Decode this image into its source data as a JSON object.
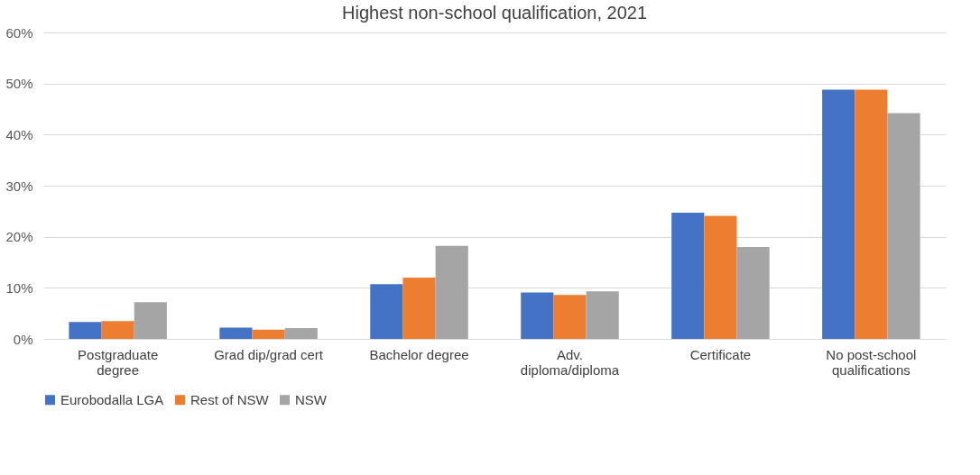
{
  "chart_data": {
    "type": "bar",
    "title": "Highest non-school qualification, 2021",
    "categories": [
      "Postgraduate degree",
      "Grad dip/grad cert",
      "Bachelor degree",
      "Adv. diploma/diploma",
      "Certificate",
      "No post-school qualifications"
    ],
    "series": [
      {
        "name": "Eurobodalla LGA",
        "color": "#4472c4",
        "values": [
          3.3,
          2.2,
          10.7,
          9.1,
          24.7,
          48.8
        ]
      },
      {
        "name": "Rest of NSW",
        "color": "#ed7d31",
        "values": [
          3.5,
          1.8,
          12.0,
          8.6,
          24.1,
          48.8
        ]
      },
      {
        "name": "NSW",
        "color": "#a5a5a5",
        "values": [
          7.2,
          2.1,
          18.2,
          9.3,
          18.0,
          44.2
        ]
      }
    ],
    "ylim": [
      0,
      60
    ],
    "yticks": [
      {
        "value": 0,
        "label": "0%"
      },
      {
        "value": 10,
        "label": "10%"
      },
      {
        "value": 20,
        "label": "20%"
      },
      {
        "value": 30,
        "label": "30%"
      },
      {
        "value": 40,
        "label": "40%"
      },
      {
        "value": 50,
        "label": "50%"
      },
      {
        "value": 60,
        "label": "60%"
      }
    ],
    "grid": "y",
    "legend": "bottom"
  }
}
